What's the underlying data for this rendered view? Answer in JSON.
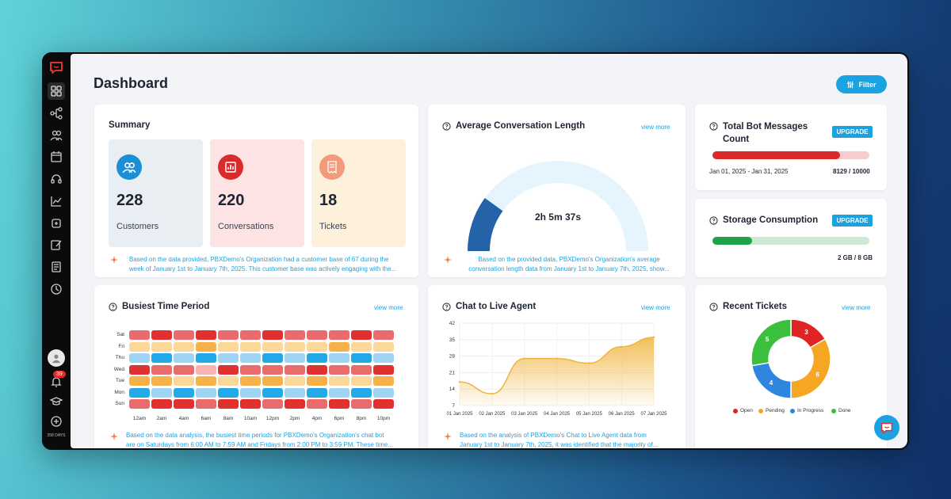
{
  "header": {
    "title": "Dashboard",
    "filter_label": "Filter"
  },
  "sidebar": {
    "items": [
      "grid-icon",
      "flow-icon",
      "users-icon",
      "calendar-icon",
      "headset-icon",
      "chart-icon",
      "tools-icon",
      "edit-icon",
      "book-icon",
      "history-icon"
    ],
    "notification_count": "39",
    "days_left": "358 DAYS"
  },
  "summary": {
    "title": "Summary",
    "stats": [
      {
        "value": "228",
        "label": "Customers",
        "bg": "#e9eef3",
        "accent": "#1a8fd6"
      },
      {
        "value": "220",
        "label": "Conversations",
        "bg": "#fde3e4",
        "accent": "#d92b2b"
      },
      {
        "value": "18",
        "label": "Tickets",
        "bg": "#fdf1dc",
        "accent": "#f29a7a"
      }
    ],
    "note_line1": "Based on the data provided, PBXDemo's Organization had a customer base of 67 during the",
    "note_line2": "week of January 1st to January 7th, 2025. This customer base was actively engaging with the..."
  },
  "avg_conversation": {
    "title": "Average Conversation Length",
    "view_more": "view more",
    "value_text": "2h 5m 37s",
    "gauge_fraction": 0.2,
    "note_line1": "Based on the provided data, PBXDemo's Organization's average",
    "note_line2": "conversation length data from January 1st to January 7th, 2025, show..."
  },
  "bot_messages": {
    "title_line1": "Total Bot Messages",
    "title_line2": "Count",
    "upgrade": "UPGRADE",
    "range": "Jan 01, 2025 - Jan 31, 2025",
    "usage": "8129 / 10000",
    "fraction": 0.8129
  },
  "storage": {
    "title": "Storage Consumption",
    "upgrade": "UPGRADE",
    "usage": "2 GB / 8 GB",
    "fraction": 0.25
  },
  "busiest": {
    "title": "Busiest Time Period",
    "view_more": "view more",
    "days": [
      "Sat",
      "Fri",
      "Thu",
      "Wed",
      "Tue",
      "Mon",
      "Sun"
    ],
    "hours": [
      "12am",
      "2am",
      "4am",
      "6am",
      "8am",
      "10am",
      "12pm",
      "2pm",
      "4pm",
      "6pm",
      "8pm",
      "10pm"
    ],
    "levels": [
      [
        2,
        3,
        2,
        3,
        2,
        2,
        3,
        2,
        2,
        2,
        3,
        2
      ],
      [
        1,
        1,
        1,
        4,
        1,
        1,
        1,
        1,
        1,
        4,
        1,
        1
      ],
      [
        5,
        6,
        5,
        6,
        5,
        5,
        6,
        5,
        6,
        5,
        6,
        5
      ],
      [
        3,
        2,
        2,
        0,
        3,
        2,
        2,
        2,
        3,
        2,
        2,
        3
      ],
      [
        4,
        4,
        1,
        4,
        1,
        4,
        4,
        1,
        4,
        1,
        1,
        4
      ],
      [
        6,
        5,
        6,
        5,
        6,
        5,
        6,
        5,
        6,
        5,
        6,
        5
      ],
      [
        2,
        3,
        3,
        2,
        3,
        3,
        2,
        3,
        2,
        3,
        2,
        3
      ]
    ],
    "palette": [
      "#f7b3b3",
      "#fbd89a",
      "#e96b6b",
      "#e03030",
      "#f6b24a",
      "#9fd5f3",
      "#22aae8"
    ],
    "note_line1": "Based on the data analysis, the busiest time periods for PBXDemo's Organization's chat bot",
    "note_line2": "are on Saturdays from 6:00 AM to 7:59 AM and Fridays from 2:00 PM to 3:59 PM. These time..."
  },
  "chat_live": {
    "title": "Chat to Live Agent",
    "view_more": "view more",
    "note_line1": "Based on the analysis of PBXDemo's Chat to Live Agent data from",
    "note_line2": "January 1st to January 7th, 2025, it was identified that the majority of..."
  },
  "chart_data": {
    "type": "area",
    "x": [
      "01 Jan 2025",
      "02 Jan 2025",
      "03 Jan 2025",
      "04 Jan 2025",
      "05 Jan 2025",
      "06 Jan 2025",
      "07 Jan 2025"
    ],
    "values": [
      17,
      12,
      27,
      27,
      25,
      32,
      36
    ],
    "y_ticks": [
      "42",
      "35",
      "28",
      "21",
      "14",
      "7"
    ],
    "ylim": [
      7,
      42
    ],
    "color": "#f0b43c"
  },
  "recent_tickets": {
    "title": "Recent Tickets",
    "view_more": "view more",
    "slices": [
      {
        "label": "Open",
        "value": 3,
        "color": "#e02424"
      },
      {
        "label": "Pending",
        "value": 6,
        "color": "#f5a623"
      },
      {
        "label": "In Progress",
        "value": 4,
        "color": "#2e86de"
      },
      {
        "label": "Done",
        "value": 5,
        "color": "#3cbf3c"
      }
    ]
  }
}
